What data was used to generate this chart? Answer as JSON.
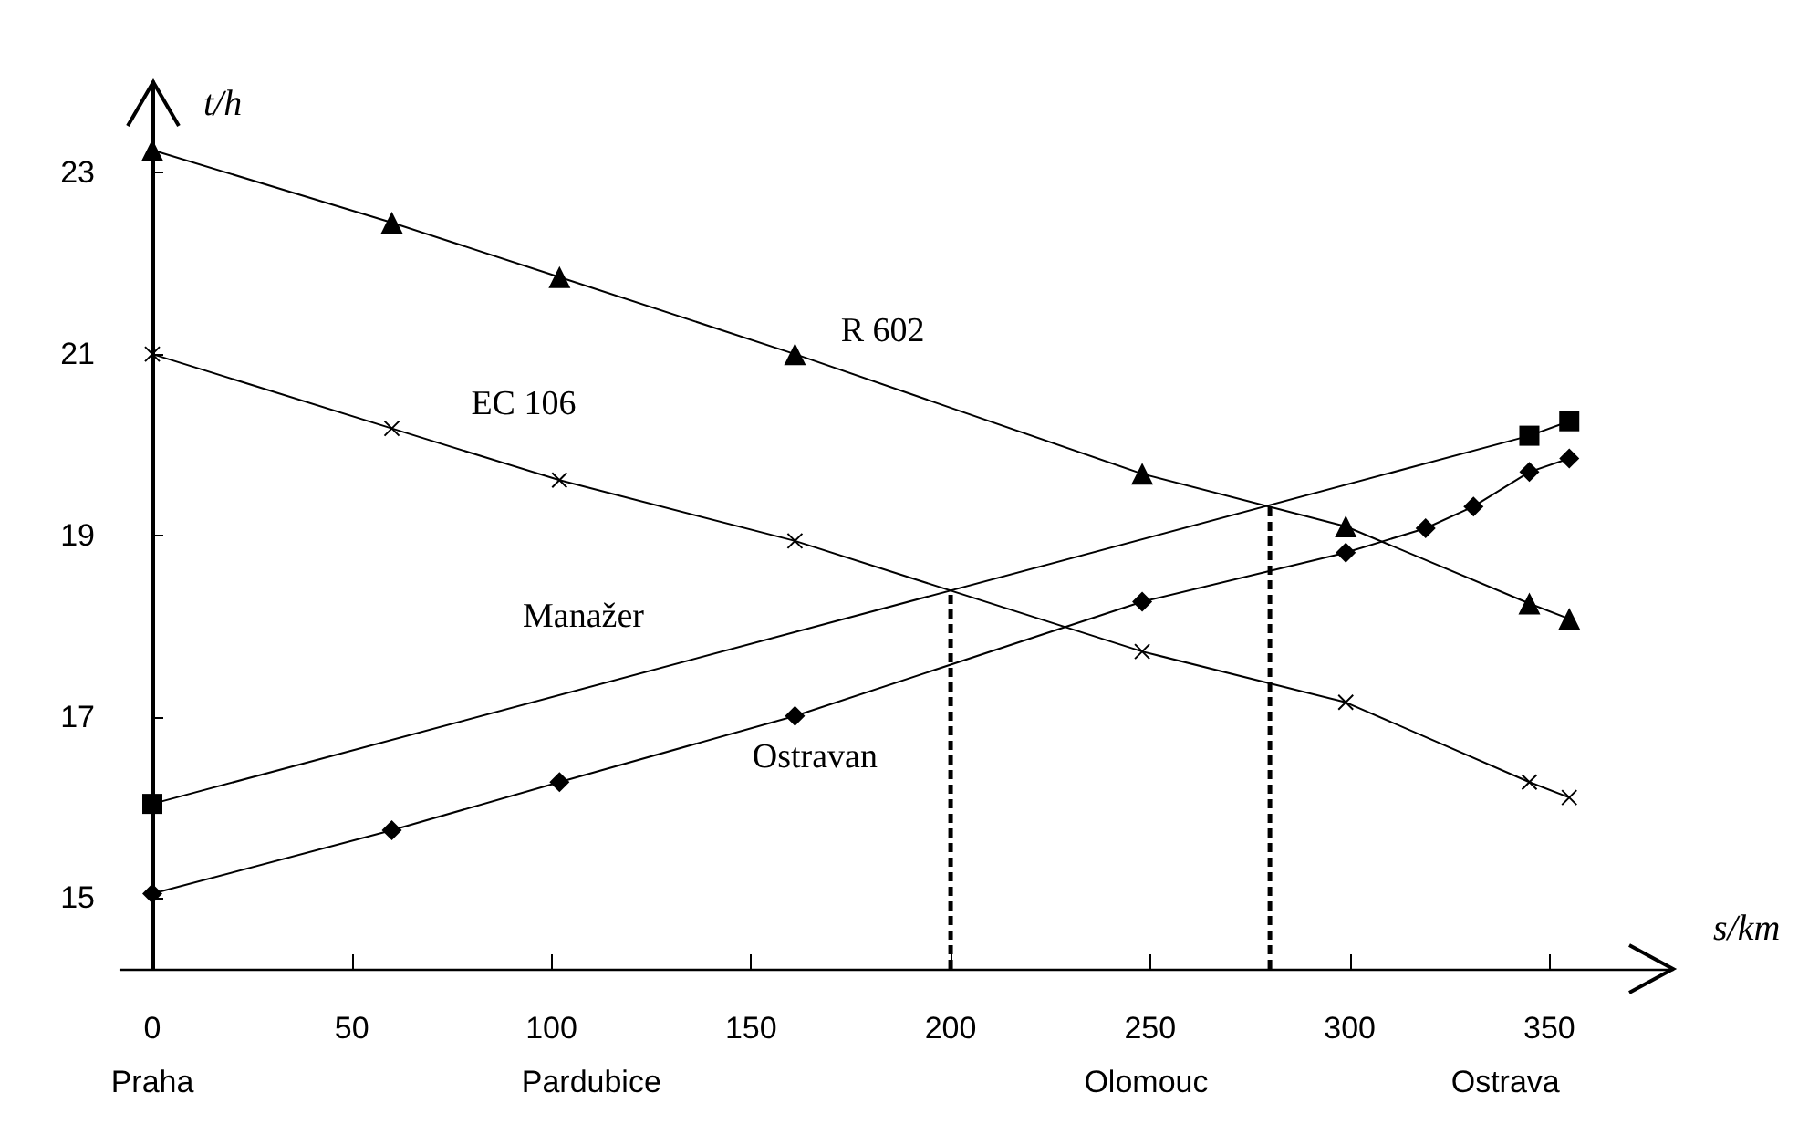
{
  "chart_data": {
    "type": "line",
    "xlabel": "s/km",
    "ylabel": "t/h",
    "xlim": [
      -8,
      381
    ],
    "ylim": [
      14.22,
      24
    ],
    "xticks": [
      0,
      50,
      100,
      150,
      200,
      250,
      300,
      350
    ],
    "yticks": [
      15,
      17,
      19,
      21,
      23
    ],
    "grid": false,
    "legend": false,
    "series": [
      {
        "name": "R 602",
        "color": "#000000",
        "marker": "triangle",
        "x": [
          0,
          60,
          102,
          161,
          248,
          299,
          345,
          355
        ],
        "values": [
          23.25,
          22.45,
          21.85,
          21.0,
          19.68,
          19.1,
          18.25,
          18.08
        ]
      },
      {
        "name": "EC 106",
        "color": "#000000",
        "marker": "cross",
        "x": [
          0,
          60,
          102,
          161,
          248,
          299,
          345,
          355
        ],
        "values": [
          21.0,
          20.18,
          19.61,
          18.94,
          17.72,
          17.16,
          16.28,
          16.11
        ]
      },
      {
        "name": "Manažer",
        "color": "#000000",
        "marker": "square",
        "x": [
          0,
          345,
          355
        ],
        "values": [
          16.04,
          20.1,
          20.26
        ]
      },
      {
        "name": "Ostravan",
        "color": "#000000",
        "marker": "diamond",
        "x": [
          0,
          60,
          102,
          161,
          248,
          299,
          319,
          331,
          345,
          355
        ],
        "values": [
          15.05,
          15.75,
          16.28,
          17.01,
          18.27,
          18.81,
          19.08,
          19.32,
          19.7,
          19.85
        ]
      }
    ],
    "ref_lines": [
      {
        "axis": "x",
        "value": 200,
        "color": "#000000",
        "line_style": "dashed"
      },
      {
        "axis": "x",
        "value": 280,
        "color": "#000000",
        "line_style": "dashed"
      }
    ],
    "annotations": [
      "Praha",
      "Pardubice",
      "Olomouc",
      "Ostrava"
    ]
  }
}
